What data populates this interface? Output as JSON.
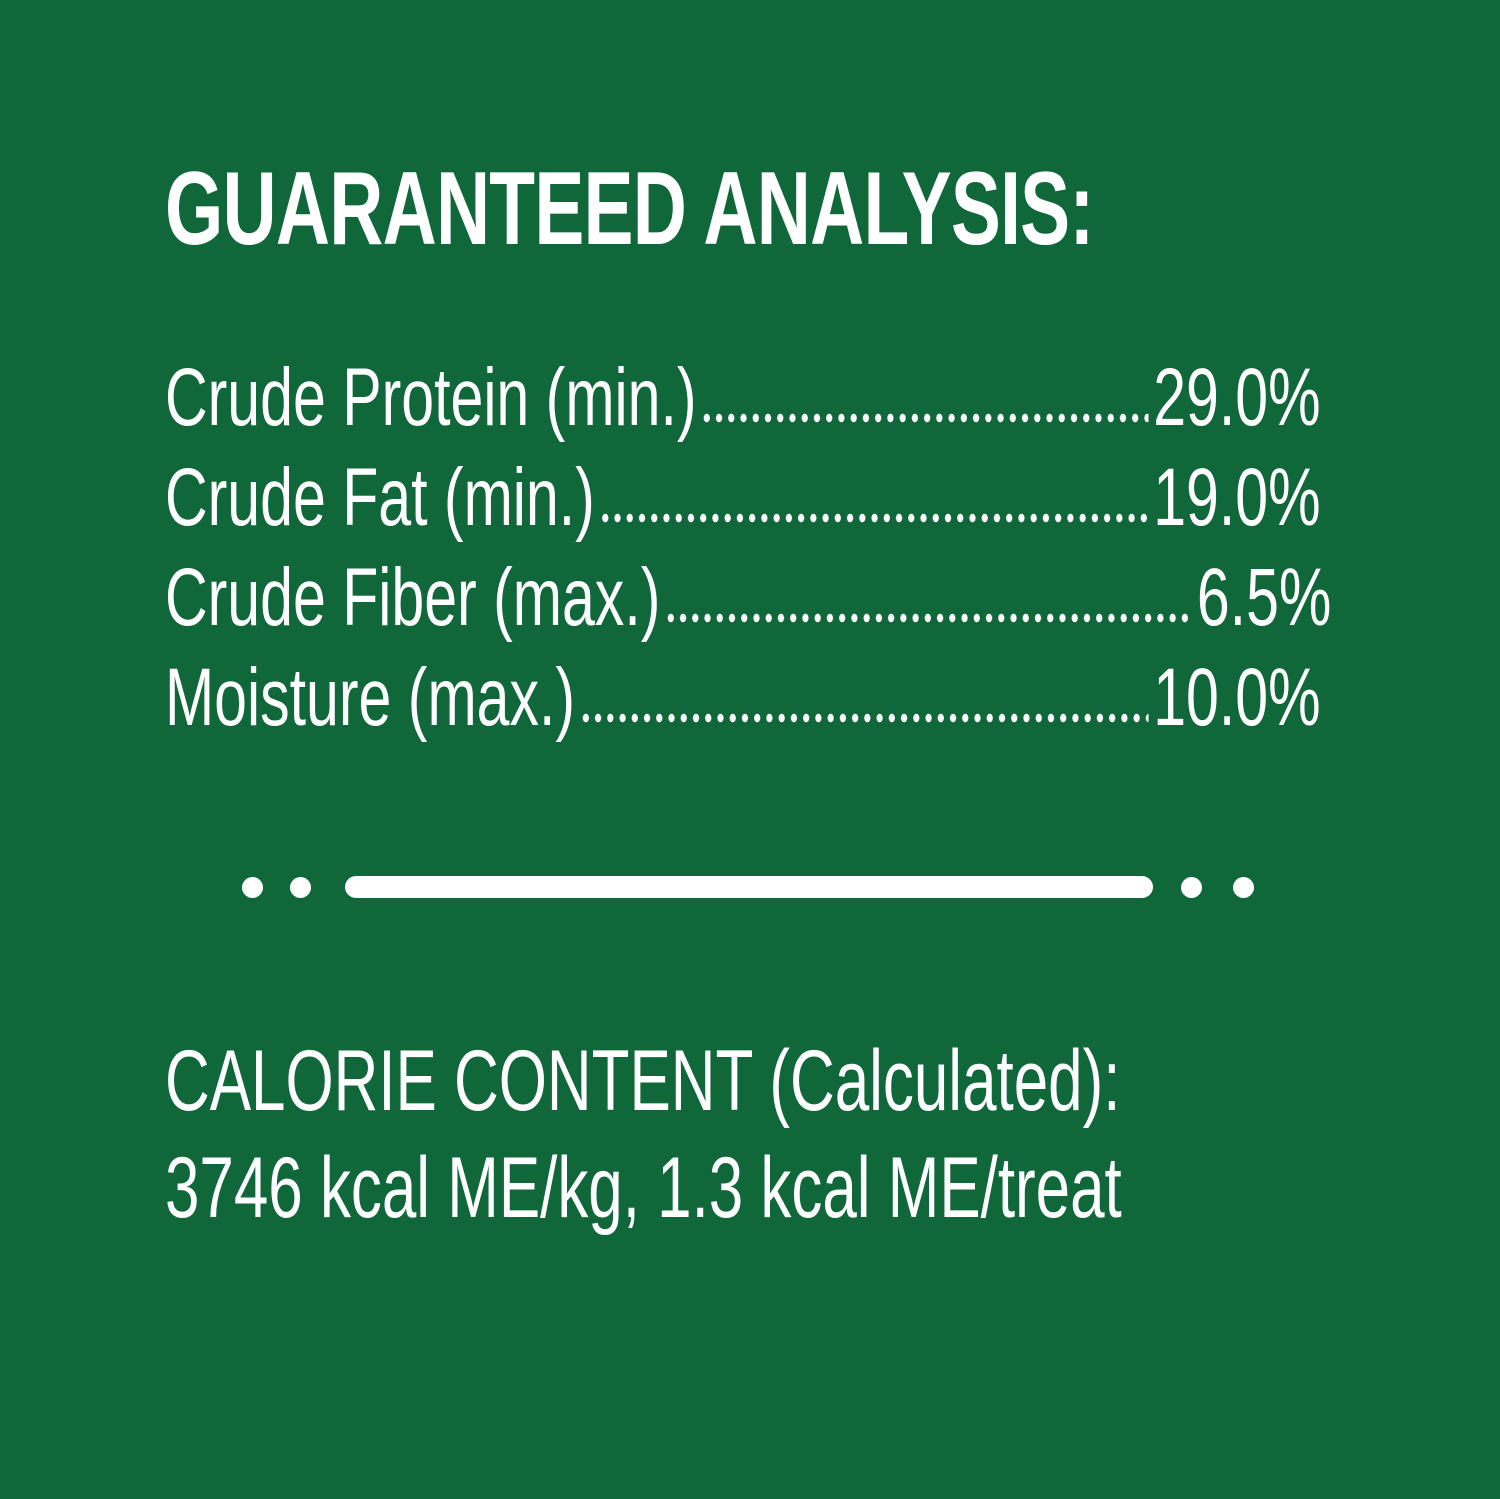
{
  "title": "GUARANTEED ANALYSIS:",
  "rows": [
    {
      "label": "Crude Protein (min.)",
      "value": "29.0%"
    },
    {
      "label": "Crude Fat (min.)",
      "value": "19.0%"
    },
    {
      "label": "Crude Fiber (max.)",
      "value": "6.5%"
    },
    {
      "label": "Moisture (max.)",
      "value": "10.0%"
    }
  ],
  "calorie": {
    "line1": "CALORIE CONTENT (Calculated):",
    "line2": "3746 kcal ME/kg, 1.3 kcal ME/treat"
  },
  "colors": {
    "background": "#10683A",
    "text": "#FFFFFF"
  }
}
